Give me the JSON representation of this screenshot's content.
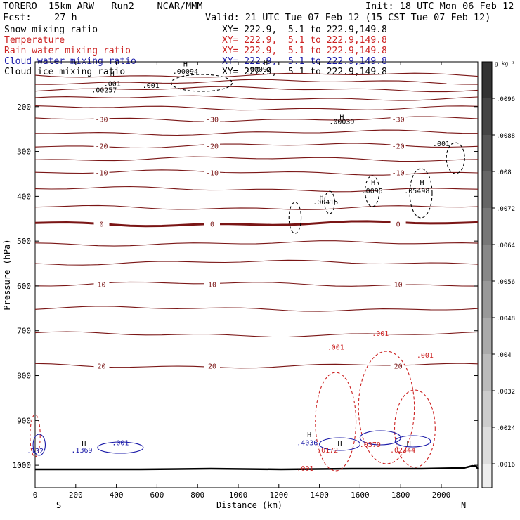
{
  "header": {
    "model": "TORERO  15km ARW   Run2    NCAR/MMM",
    "init": "Init: 18 UTC Mon 06 Feb 12",
    "fcst": "Fcst:    27 h",
    "valid": "Valid: 21 UTC Tue 07 Feb 12 (15 CST Tue 07 Feb 12)"
  },
  "fields": [
    {
      "name": "Snow mixing ratio",
      "xy": "XY= 222.9,  5.1 to 222.9,149.8",
      "color": "#000000"
    },
    {
      "name": "Temperature",
      "xy": "XY= 222.9,  5.1 to 222.9,149.8",
      "color": "#cc2222"
    },
    {
      "name": "Rain water mixing ratio",
      "xy": "XY= 222.9,  5.1 to 222.9,149.8",
      "color": "#cc2222"
    },
    {
      "name": "Cloud water mixing ratio",
      "xy": "XY= 222.9,  5.1 to 222.9,149.8",
      "color": "#1a1aa8"
    },
    {
      "name": "Cloud ice mixing ratio",
      "xy": "XY= 222.9,  5.1 to 222.9,149.8",
      "color": "#000000"
    }
  ],
  "colorbar": {
    "unit": "g kg⁻¹",
    "ticks": [
      ".0096",
      ".0088",
      ".008",
      ".0072",
      ".0064",
      ".0056",
      ".0048",
      ".004",
      ".0032",
      ".0024",
      ".0016"
    ]
  },
  "chart_data": {
    "type": "contour",
    "xlabel": "Distance (km)",
    "ylabel": "Pressure (hPa)",
    "xlim": [
      0,
      2180
    ],
    "ylim": [
      1050,
      100
    ],
    "xticks": [
      0,
      200,
      400,
      600,
      800,
      1000,
      1200,
      1400,
      1600,
      1800,
      2000
    ],
    "yticks": [
      200,
      300,
      400,
      500,
      600,
      700,
      800,
      900,
      1000
    ],
    "x_end_labels": {
      "left": "S",
      "right": "N"
    },
    "isotherms": [
      {
        "p": 130
      },
      {
        "p": 145
      },
      {
        "p": 161
      },
      {
        "p": 181
      },
      {
        "p": 203
      },
      {
        "p": 228,
        "label": "-30"
      },
      {
        "p": 258
      },
      {
        "p": 287,
        "label": "-20"
      },
      {
        "p": 317
      },
      {
        "p": 347,
        "label": "-10"
      },
      {
        "p": 384
      },
      {
        "p": 425
      },
      {
        "p": 461,
        "label": "0",
        "bold": true
      },
      {
        "p": 505
      },
      {
        "p": 548
      },
      {
        "p": 596,
        "label": "10"
      },
      {
        "p": 651
      },
      {
        "p": 708
      },
      {
        "p": 778,
        "label": "20"
      }
    ],
    "annotations": [
      {
        "x": 380,
        "p": 154,
        "text": ".001",
        "color": "#000000"
      },
      {
        "x": 570,
        "p": 158,
        "text": ".001",
        "color": "#000000"
      },
      {
        "x": 740,
        "p": 127,
        "text": ".00094",
        "color": "#000000"
      },
      {
        "x": 340,
        "p": 168,
        "text": ".00257",
        "color": "#000000"
      },
      {
        "x": 1100,
        "p": 122,
        "text": ".00097",
        "color": "#000000"
      },
      {
        "x": 1510,
        "p": 239,
        "text": ".00039",
        "color": "#000000"
      },
      {
        "x": 1430,
        "p": 418,
        "text": ".00415",
        "color": "#000000"
      },
      {
        "x": 1660,
        "p": 393,
        "text": ".0095",
        "color": "#000000"
      },
      {
        "x": 1880,
        "p": 393,
        "text": ".05498",
        "color": "#000000"
      },
      {
        "x": 2000,
        "p": 288,
        "text": ".001",
        "color": "#000000"
      },
      {
        "x": 1480,
        "p": 742,
        "text": ".001",
        "color": "#cc2222"
      },
      {
        "x": 1700,
        "p": 711,
        "text": ".001",
        "color": "#cc2222"
      },
      {
        "x": 1920,
        "p": 760,
        "text": ".001",
        "color": "#cc2222"
      },
      {
        "x": 1330,
        "p": 1012,
        "text": ".001",
        "color": "#cc2222"
      },
      {
        "x": 1440,
        "p": 972,
        "text": ".0172",
        "color": "#cc2222"
      },
      {
        "x": 1650,
        "p": 959,
        "text": ".0379",
        "color": "#cc2222"
      },
      {
        "x": 1810,
        "p": 972,
        "text": ".02344",
        "color": "#cc2222"
      },
      {
        "x": 0,
        "p": 973,
        "text": ".132",
        "color": "#1a1aa8"
      },
      {
        "x": 230,
        "p": 972,
        "text": ".1369",
        "color": "#1a1aa8"
      },
      {
        "x": 420,
        "p": 955,
        "text": ".001",
        "color": "#1a1aa8"
      },
      {
        "x": 1340,
        "p": 955,
        "text": ".4036",
        "color": "#1a1aa8"
      }
    ],
    "maxima_markers": [
      {
        "x": 740,
        "p": 110
      },
      {
        "x": 380,
        "p": 131
      },
      {
        "x": 1135,
        "p": 108
      },
      {
        "x": 1510,
        "p": 228
      },
      {
        "x": 1410,
        "p": 407
      },
      {
        "x": 1665,
        "p": 374
      },
      {
        "x": 1905,
        "p": 374
      },
      {
        "x": 1500,
        "p": 957
      },
      {
        "x": 1840,
        "p": 957
      },
      {
        "x": 240,
        "p": 957
      },
      {
        "x": 1350,
        "p": 937
      }
    ]
  }
}
